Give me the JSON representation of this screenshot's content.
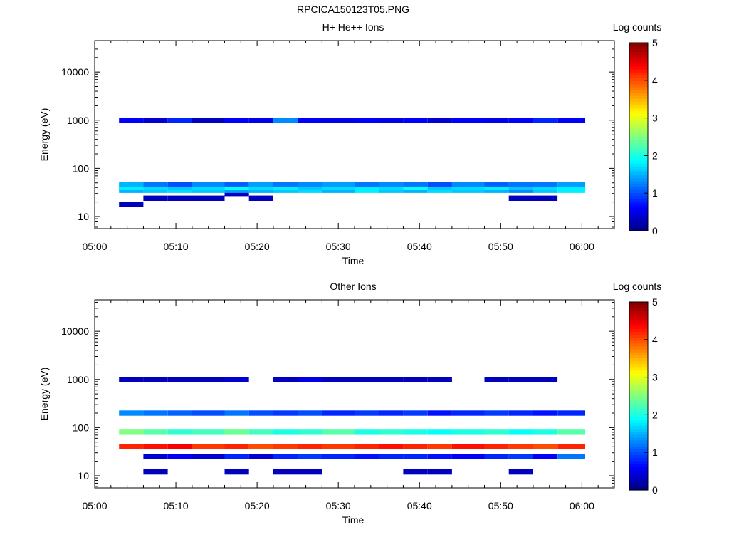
{
  "figure_title": "RPCICA150123T05.PNG",
  "chart_data": [
    {
      "type": "heatmap",
      "title": "H+ He++ Ions",
      "xlabel": "Time",
      "ylabel": "Energy (eV)",
      "x_ticks": [
        "05:00",
        "05:10",
        "05:20",
        "05:30",
        "05:40",
        "05:50",
        "06:00"
      ],
      "x_range": [
        "05:00",
        "06:04"
      ],
      "y_scale": "log",
      "y_ticks": [
        "10",
        "100",
        "1000",
        "10000"
      ],
      "y_range": [
        5.6,
        45000
      ],
      "colorbar": {
        "label": "Log counts",
        "ticks": [
          "0",
          "1",
          "2",
          "3",
          "4",
          "5"
        ],
        "range": [
          0,
          5
        ],
        "colormap": "jet"
      },
      "time_bins": [
        "05:03",
        "05:06",
        "05:09",
        "05:12",
        "05:16",
        "05:19",
        "05:22",
        "05:25",
        "05:28",
        "05:32",
        "05:35",
        "05:38",
        "05:41",
        "05:44",
        "05:48",
        "05:51",
        "05:54",
        "05:57"
      ],
      "approximate_log_counts_by_energy": [
        {
          "energy_ev": 18,
          "values": [
            0.3,
            0,
            0,
            0,
            0,
            0,
            0,
            0,
            0,
            0,
            0,
            0,
            0,
            0,
            0,
            0,
            0,
            0
          ]
        },
        {
          "energy_ev": 24,
          "values": [
            0,
            0.3,
            0.3,
            0.3,
            0,
            0.3,
            0,
            0,
            0,
            0,
            0,
            0,
            0,
            0,
            0,
            0.3,
            0.3,
            0
          ]
        },
        {
          "energy_ev": 30,
          "values": [
            0,
            0,
            0,
            0,
            0.3,
            0,
            0,
            0,
            0,
            0,
            0,
            0,
            0,
            0,
            0,
            0,
            0,
            0
          ]
        },
        {
          "energy_ev": 35,
          "values": [
            1.5,
            1.6,
            1.7,
            1.6,
            1.4,
            1.5,
            1.6,
            1.7,
            1.5,
            1.8,
            1.6,
            1.5,
            1.7,
            1.6,
            1.5,
            1.3,
            1.6,
            1.8
          ]
        },
        {
          "energy_ev": 40,
          "values": [
            1.8,
            1.7,
            1.6,
            1.7,
            1.9,
            1.7,
            1.8,
            1.6,
            1.7,
            1.8,
            1.7,
            1.9,
            1.6,
            1.7,
            1.8,
            1.6,
            1.7,
            1.8
          ]
        },
        {
          "energy_ev": 46,
          "values": [
            1.5,
            1.2,
            1.0,
            1.3,
            1.1,
            1.4,
            1.2,
            1.3,
            1.4,
            1.2,
            1.3,
            1.2,
            1.0,
            1.3,
            1.1,
            1.2,
            1.2,
            1.4
          ]
        },
        {
          "energy_ev": 1000,
          "values": [
            0.6,
            0.4,
            0.8,
            0.3,
            0.6,
            0.5,
            1.3,
            0.6,
            0.5,
            0.6,
            0.5,
            0.6,
            0.4,
            0.6,
            0.5,
            0.6,
            0.8,
            0.6
          ]
        }
      ]
    },
    {
      "type": "heatmap",
      "title": "Other Ions",
      "xlabel": "Time",
      "ylabel": "Energy (eV)",
      "x_ticks": [
        "05:00",
        "05:10",
        "05:20",
        "05:30",
        "05:40",
        "05:50",
        "06:00"
      ],
      "x_range": [
        "05:00",
        "06:04"
      ],
      "y_scale": "log",
      "y_ticks": [
        "10",
        "100",
        "1000",
        "10000"
      ],
      "y_range": [
        5.6,
        45000
      ],
      "colorbar": {
        "label": "Log counts",
        "ticks": [
          "0",
          "1",
          "2",
          "3",
          "4",
          "5"
        ],
        "range": [
          0,
          5
        ],
        "colormap": "jet"
      },
      "time_bins": [
        "05:03",
        "05:06",
        "05:09",
        "05:12",
        "05:16",
        "05:19",
        "05:22",
        "05:25",
        "05:28",
        "05:32",
        "05:35",
        "05:38",
        "05:41",
        "05:44",
        "05:48",
        "05:51",
        "05:54",
        "05:57"
      ],
      "approximate_log_counts_by_energy": [
        {
          "energy_ev": 12,
          "values": [
            0,
            0.3,
            0,
            0,
            0.3,
            0,
            0.3,
            0.3,
            0,
            0,
            0,
            0.3,
            0.3,
            0,
            0,
            0.3,
            0,
            0
          ]
        },
        {
          "energy_ev": 25,
          "values": [
            0,
            0.4,
            0.6,
            0.4,
            0.8,
            0.4,
            0.8,
            0.9,
            0.8,
            0.7,
            0.8,
            0.8,
            0.7,
            0.6,
            0.8,
            0.9,
            0.6,
            1.2
          ]
        },
        {
          "energy_ev": 40,
          "values": [
            4.2,
            4.3,
            4.4,
            4.1,
            4.2,
            4.0,
            4.1,
            4.2,
            4.1,
            4.2,
            4.3,
            4.2,
            4.1,
            4.3,
            4.2,
            4.1,
            4.0,
            4.2
          ]
        },
        {
          "energy_ev": 80,
          "values": [
            2.5,
            2.3,
            2.1,
            2.2,
            2.4,
            2.2,
            2.0,
            2.1,
            2.3,
            2.0,
            2.1,
            2.0,
            1.9,
            2.0,
            2.1,
            1.9,
            2.0,
            2.3
          ]
        },
        {
          "energy_ev": 200,
          "values": [
            1.3,
            1.2,
            1.1,
            1.0,
            1.2,
            1.0,
            0.9,
            1.0,
            0.8,
            0.9,
            0.8,
            0.9,
            0.7,
            0.8,
            0.9,
            0.8,
            0.7,
            0.8
          ]
        },
        {
          "energy_ev": 1000,
          "values": [
            0.3,
            0.3,
            0.3,
            0.3,
            0.4,
            0,
            0.3,
            0.5,
            0.3,
            0.3,
            0.3,
            0.3,
            0.3,
            0,
            0.3,
            0.3,
            0.3,
            0
          ]
        }
      ]
    }
  ]
}
